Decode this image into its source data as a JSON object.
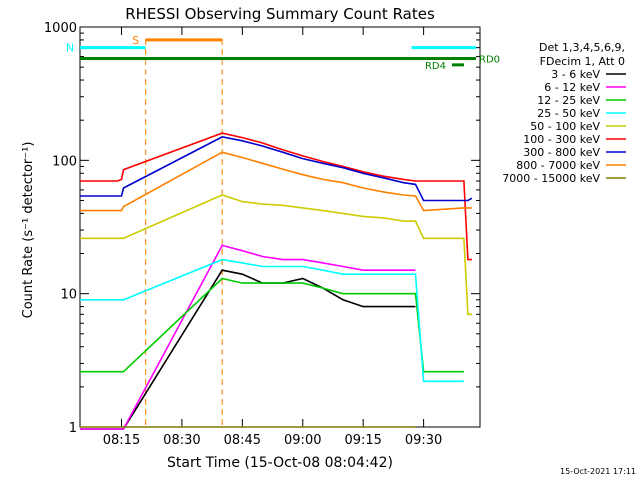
{
  "chart_data": {
    "type": "line",
    "title": "RHESSI Observing Summary Count Rates",
    "xlabel": "Start Time (15-Oct-08 08:04:42)",
    "ylabel": "Count Rate (s⁻¹ detector⁻¹)",
    "y_scale": "log",
    "ylim": [
      1,
      1000
    ],
    "y_ticks": [
      {
        "value": 1,
        "label": "1"
      },
      {
        "value": 10,
        "label": "10"
      },
      {
        "value": 100,
        "label": "100"
      },
      {
        "value": 1000,
        "label": "1000"
      }
    ],
    "x_range": [
      "08:04:42",
      "09:44:00"
    ],
    "x_ticks": [
      "08:15",
      "08:30",
      "08:45",
      "09:00",
      "09:15",
      "09:30"
    ],
    "timestamp": "15-Oct-2021 17:11",
    "legend": {
      "placement": "right, outside plot",
      "header": [
        "Det 1,3,4,5,6,9,",
        "FDecim 1, Att 0"
      ]
    },
    "gap": {
      "start": "08:21",
      "end": "08:40"
    },
    "series": [
      {
        "name": "3 - 6 keV",
        "color": "#000000",
        "points": [
          [
            "08:04:42",
            0
          ],
          [
            "08:14",
            0
          ],
          [
            "08:15",
            0
          ],
          [
            "08:15:30",
            0
          ],
          [
            "08:40",
            15
          ],
          [
            "08:45",
            14
          ],
          [
            "08:50",
            12
          ],
          [
            "08:55",
            12
          ],
          [
            "09:00",
            13
          ],
          [
            "09:05",
            11
          ],
          [
            "09:10",
            9
          ],
          [
            "09:15",
            8
          ],
          [
            "09:20",
            8
          ],
          [
            "09:25",
            8
          ],
          [
            "09:28",
            8
          ]
        ]
      },
      {
        "name": "6 - 12 keV",
        "color": "#ff00ff",
        "points": [
          [
            "08:04:42",
            0
          ],
          [
            "08:14",
            0
          ],
          [
            "08:15",
            0
          ],
          [
            "08:15:30",
            0
          ],
          [
            "08:40",
            23
          ],
          [
            "08:45",
            21
          ],
          [
            "08:50",
            19
          ],
          [
            "08:55",
            18
          ],
          [
            "09:00",
            18
          ],
          [
            "09:05",
            17
          ],
          [
            "09:10",
            16
          ],
          [
            "09:15",
            15
          ],
          [
            "09:20",
            15
          ],
          [
            "09:25",
            15
          ],
          [
            "09:28",
            15
          ]
        ]
      },
      {
        "name": "12 - 25 keV",
        "color": "#00cc00",
        "points": [
          [
            "08:04:42",
            2.6
          ],
          [
            "08:14",
            2.6
          ],
          [
            "08:15",
            2.6
          ],
          [
            "08:15:30",
            2.6
          ],
          [
            "08:40",
            13
          ],
          [
            "08:45",
            12
          ],
          [
            "08:50",
            12
          ],
          [
            "08:55",
            12
          ],
          [
            "09:00",
            12
          ],
          [
            "09:05",
            11
          ],
          [
            "09:10",
            10
          ],
          [
            "09:15",
            10
          ],
          [
            "09:20",
            10
          ],
          [
            "09:25",
            10
          ],
          [
            "09:28",
            10
          ],
          [
            "09:30",
            2.6
          ],
          [
            "09:40",
            2.6
          ]
        ]
      },
      {
        "name": "25 - 50 keV",
        "color": "#00ffff",
        "points": [
          [
            "08:04:42",
            9
          ],
          [
            "08:14",
            9
          ],
          [
            "08:15",
            9
          ],
          [
            "08:15:30",
            9
          ],
          [
            "08:40",
            18
          ],
          [
            "08:45",
            17
          ],
          [
            "08:50",
            16
          ],
          [
            "08:55",
            16
          ],
          [
            "09:00",
            16
          ],
          [
            "09:05",
            15
          ],
          [
            "09:10",
            14
          ],
          [
            "09:15",
            14
          ],
          [
            "09:20",
            14
          ],
          [
            "09:25",
            14
          ],
          [
            "09:28",
            14
          ],
          [
            "09:30",
            2.2
          ],
          [
            "09:40",
            2.2
          ]
        ]
      },
      {
        "name": "50 - 100 keV",
        "color": "#cccc00",
        "points": [
          [
            "08:04:42",
            26
          ],
          [
            "08:14",
            26
          ],
          [
            "08:15",
            26
          ],
          [
            "08:15:30",
            26
          ],
          [
            "08:40",
            55
          ],
          [
            "08:45",
            49
          ],
          [
            "08:50",
            47
          ],
          [
            "08:55",
            46
          ],
          [
            "09:00",
            44
          ],
          [
            "09:05",
            42
          ],
          [
            "09:10",
            40
          ],
          [
            "09:15",
            38
          ],
          [
            "09:20",
            37
          ],
          [
            "09:25",
            35
          ],
          [
            "09:28",
            35
          ],
          [
            "09:30",
            26
          ],
          [
            "09:40",
            26
          ],
          [
            "09:41",
            7
          ],
          [
            "09:42",
            7
          ]
        ]
      },
      {
        "name": "100 - 300 keV",
        "color": "#ff0000",
        "points": [
          [
            "08:04:42",
            70
          ],
          [
            "08:14",
            70
          ],
          [
            "08:15",
            72
          ],
          [
            "08:15:30",
            85
          ],
          [
            "08:40",
            160
          ],
          [
            "08:45",
            148
          ],
          [
            "08:50",
            135
          ],
          [
            "08:55",
            120
          ],
          [
            "09:00",
            108
          ],
          [
            "09:05",
            98
          ],
          [
            "09:10",
            90
          ],
          [
            "09:15",
            82
          ],
          [
            "09:20",
            76
          ],
          [
            "09:25",
            72
          ],
          [
            "09:28",
            70
          ],
          [
            "09:30",
            70
          ],
          [
            "09:40",
            70
          ],
          [
            "09:41",
            18
          ],
          [
            "09:42",
            18
          ]
        ]
      },
      {
        "name": "300 - 800 keV",
        "color": "#0000cc",
        "points": [
          [
            "08:04:42",
            54
          ],
          [
            "08:14",
            54
          ],
          [
            "08:15",
            54
          ],
          [
            "08:15:30",
            62
          ],
          [
            "08:40",
            150
          ],
          [
            "08:45",
            140
          ],
          [
            "08:50",
            128
          ],
          [
            "08:55",
            115
          ],
          [
            "09:00",
            103
          ],
          [
            "09:05",
            95
          ],
          [
            "09:10",
            88
          ],
          [
            "09:15",
            80
          ],
          [
            "09:20",
            74
          ],
          [
            "09:25",
            68
          ],
          [
            "09:28",
            66
          ],
          [
            "09:30",
            50
          ],
          [
            "09:40",
            50
          ],
          [
            "09:41",
            50
          ],
          [
            "09:42",
            52
          ]
        ]
      },
      {
        "name": "800 - 7000 keV",
        "color": "#ff8000",
        "points": [
          [
            "08:04:42",
            42
          ],
          [
            "08:14",
            42
          ],
          [
            "08:15",
            42
          ],
          [
            "08:15:30",
            45
          ],
          [
            "08:40",
            115
          ],
          [
            "08:45",
            105
          ],
          [
            "08:50",
            95
          ],
          [
            "08:55",
            86
          ],
          [
            "09:00",
            78
          ],
          [
            "09:05",
            72
          ],
          [
            "09:10",
            68
          ],
          [
            "09:15",
            62
          ],
          [
            "09:20",
            58
          ],
          [
            "09:25",
            55
          ],
          [
            "09:28",
            54
          ],
          [
            "09:30",
            42
          ],
          [
            "09:40",
            44
          ],
          [
            "09:41",
            44
          ],
          [
            "09:42",
            44
          ]
        ]
      },
      {
        "name": "7000 - 15000 keV",
        "color": "#807800",
        "points": [
          [
            "08:04:42",
            1
          ],
          [
            "08:14",
            1
          ],
          [
            "08:15",
            1
          ],
          [
            "08:15:30",
            1
          ],
          [
            "08:40",
            1
          ],
          [
            "08:45",
            1
          ],
          [
            "08:50",
            1
          ],
          [
            "08:55",
            1
          ],
          [
            "09:00",
            1
          ],
          [
            "09:05",
            1
          ],
          [
            "09:10",
            1
          ],
          [
            "09:15",
            1
          ],
          [
            "09:20",
            1
          ],
          [
            "09:25",
            1
          ],
          [
            "09:28",
            1
          ]
        ]
      }
    ],
    "flags": [
      {
        "label": "S",
        "color": "#ff8000",
        "start": "08:21",
        "end": "08:40",
        "value": 800
      },
      {
        "label": "N",
        "color": "#00ffff",
        "start": "08:04:42",
        "end": "08:21",
        "value": 700
      },
      {
        "label": "",
        "color": "#00ffff",
        "start": "09:27",
        "end": "09:43",
        "value": 700
      },
      {
        "label": "",
        "color": "#008000",
        "start": "08:04:42",
        "end": "09:43",
        "value": 580
      }
    ],
    "flag_labels": [
      {
        "label": "RD0",
        "color": "#008000"
      },
      {
        "label": "RD4",
        "color": "#008000"
      }
    ]
  }
}
